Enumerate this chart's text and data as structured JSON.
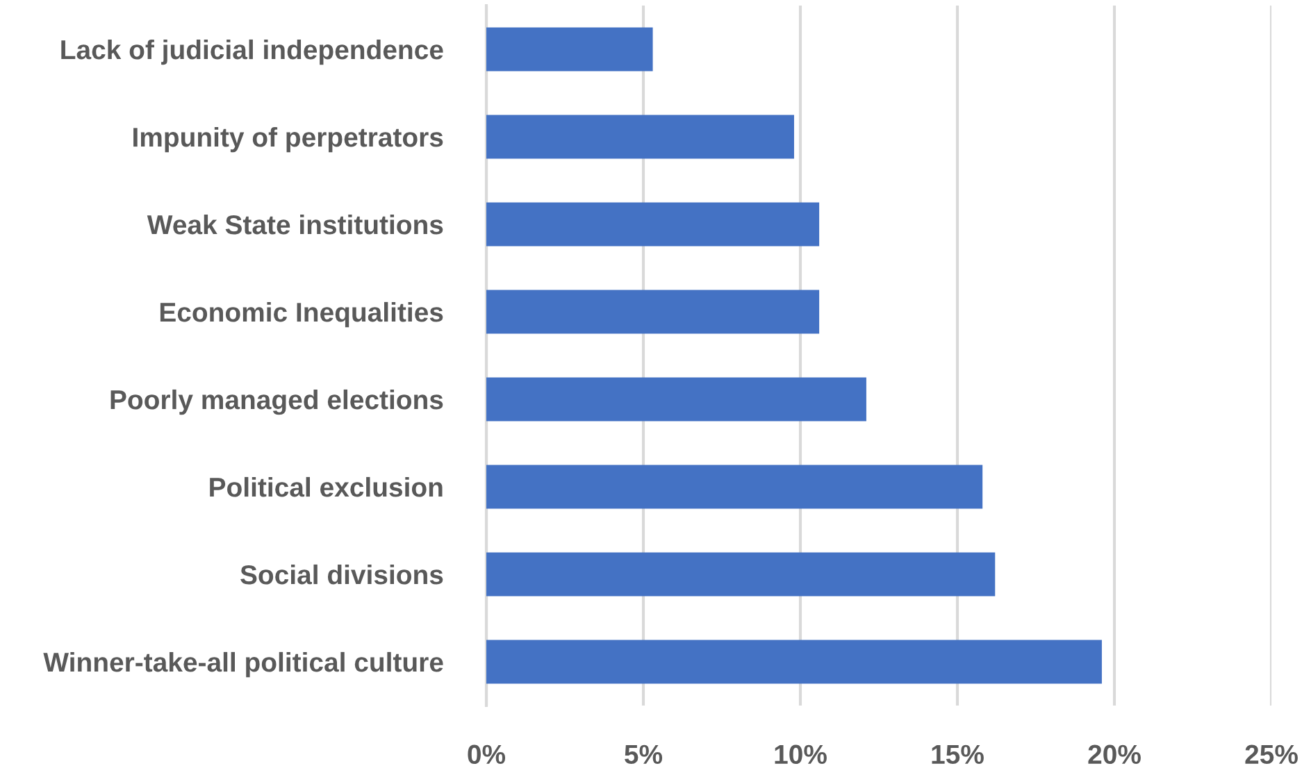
{
  "chart_data": {
    "type": "bar",
    "orientation": "horizontal",
    "categories": [
      "Lack of judicial independence",
      "Impunity of perpetrators",
      "Weak State institutions",
      "Economic Inequalities",
      "Poorly managed elections",
      "Political exclusion",
      "Social divisions",
      "Winner-take-all political culture"
    ],
    "values": [
      5.3,
      9.8,
      10.6,
      10.6,
      12.1,
      15.8,
      16.2,
      19.6
    ],
    "color": "#4472c4",
    "xlim": [
      0,
      25
    ],
    "xticks": [
      {
        "value": 0,
        "label": "0%"
      },
      {
        "value": 5,
        "label": "5%"
      },
      {
        "value": 10,
        "label": "10%"
      },
      {
        "value": 15,
        "label": "15%"
      },
      {
        "value": 20,
        "label": "20%"
      },
      {
        "value": 25,
        "label": "25%"
      }
    ],
    "grid": "x",
    "legend": false
  }
}
